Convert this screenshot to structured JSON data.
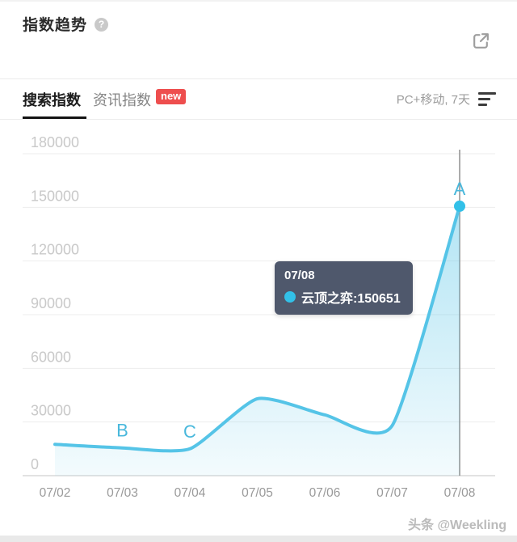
{
  "header": {
    "title": "指数趋势"
  },
  "icons": {
    "help_glyph": "?"
  },
  "tabs": {
    "items": [
      {
        "label": "搜索指数",
        "active": true
      },
      {
        "label": "资讯指数",
        "active": false,
        "badge": "new"
      }
    ],
    "period": "PC+移动, 7天"
  },
  "chart_data": {
    "type": "area",
    "title": "指数趋势",
    "categories": [
      "07/02",
      "07/03",
      "07/04",
      "07/05",
      "07/06",
      "07/07",
      "07/08"
    ],
    "series": [
      {
        "name": "云顶之弈",
        "values": [
          17500,
          15500,
          15000,
          43000,
          34000,
          28000,
          150651
        ]
      }
    ],
    "ylim": [
      0,
      180000
    ],
    "yticks": [
      0,
      30000,
      60000,
      90000,
      120000,
      150000,
      180000
    ],
    "grid": true,
    "smooth": true,
    "legend_position": "none",
    "line_color": "#55c4e7",
    "dot_color": "#32c0e8",
    "annotation_color": "#49b8dc",
    "annotations": [
      {
        "label": "B",
        "index": 1
      },
      {
        "label": "C",
        "index": 2
      },
      {
        "label": "A",
        "index": 6
      }
    ],
    "highlight": {
      "index": 6,
      "category": "07/08",
      "value": 150651
    }
  },
  "tooltip": {
    "date": "07/08",
    "series_name": "云顶之弈",
    "value": 150651,
    "label": "云顶之弈:150651"
  },
  "watermark": "头条 @Weekling"
}
